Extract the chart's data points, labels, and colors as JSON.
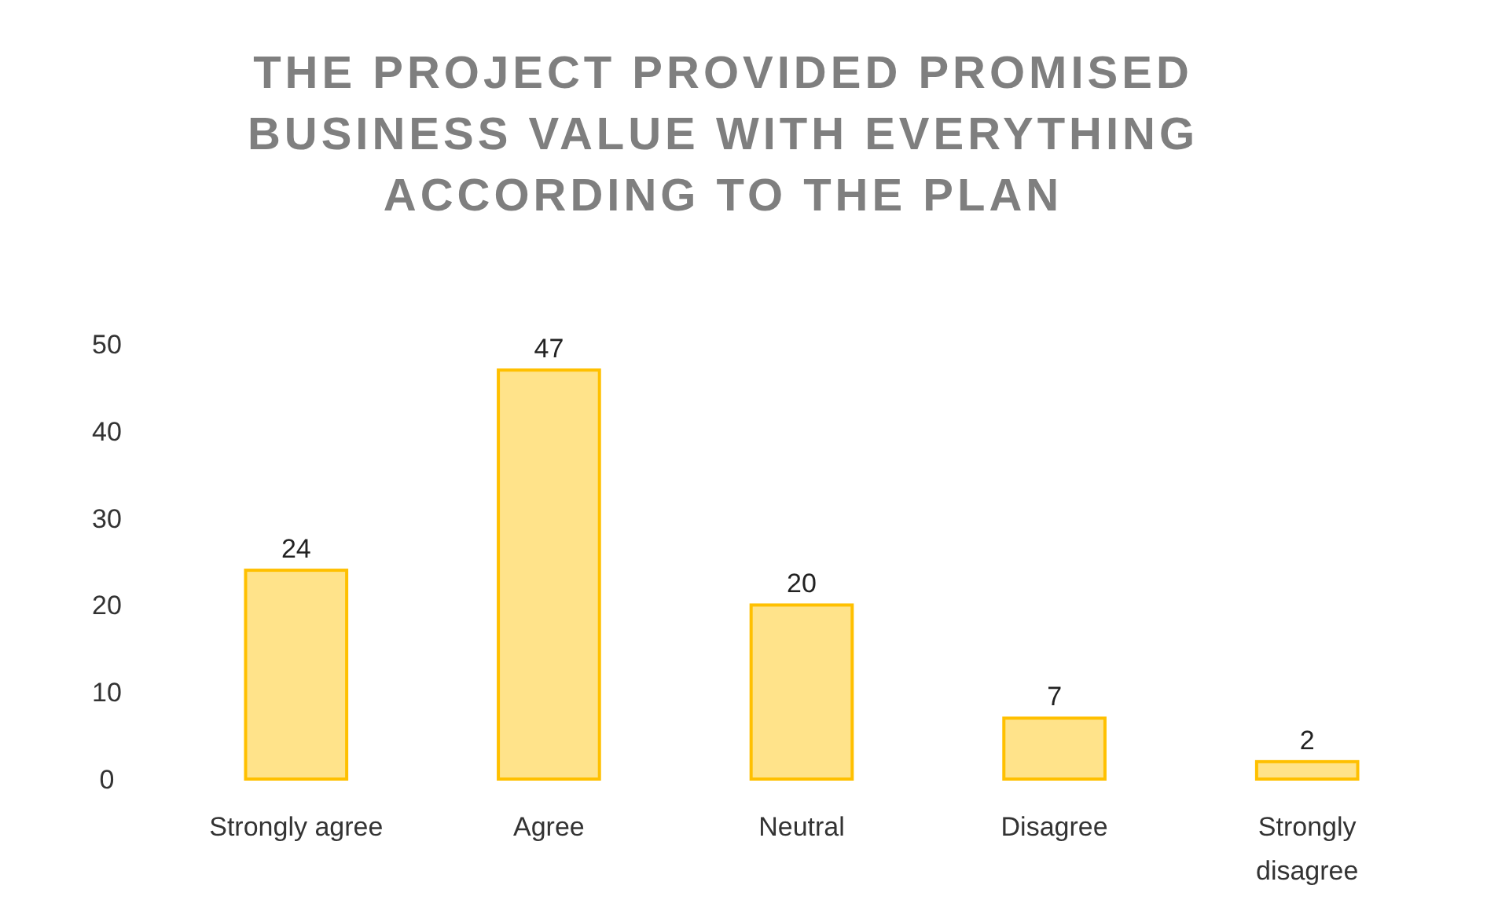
{
  "chart_data": {
    "type": "bar",
    "title": "THE PROJECT PROVIDED PROMISED BUSINESS VALUE WITH EVERYTHING ACCORDING TO THE PLAN",
    "categories": [
      "Strongly agree",
      "Agree",
      "Neutral",
      "Disagree",
      "Strongly disagree"
    ],
    "values": [
      24,
      47,
      20,
      7,
      2
    ],
    "color": "#ffe38a",
    "ylim": [
      0,
      50
    ],
    "yticks": [
      0,
      10,
      20,
      30,
      40,
      50
    ],
    "grid": false,
    "data_labels": true
  }
}
